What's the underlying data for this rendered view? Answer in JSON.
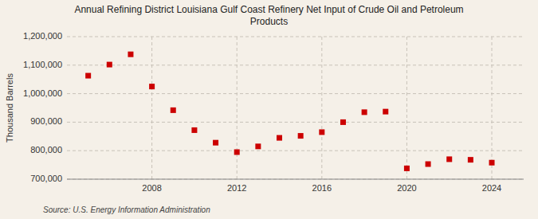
{
  "chart_data": {
    "type": "scatter",
    "title": "Annual Refining District Louisiana Gulf Coast Refinery Net Input of Crude Oil and Petroleum\nProducts",
    "y_label": "Thousand Barrels",
    "source": "Source: U.S. Energy Information Administration",
    "x": [
      2005,
      2006,
      2007,
      2008,
      2009,
      2010,
      2011,
      2012,
      2013,
      2014,
      2015,
      2016,
      2017,
      2018,
      2019,
      2020,
      2021,
      2022,
      2023,
      2024
    ],
    "values": [
      1063000,
      1102000,
      1138000,
      1025000,
      942000,
      872000,
      828000,
      795000,
      815000,
      845000,
      852000,
      865000,
      900000,
      935000,
      937000,
      738000,
      753000,
      770000,
      768000,
      758000
    ],
    "color": "#cc0000",
    "marker": "square",
    "xlim": [
      2004,
      2025.5
    ],
    "xticks": [
      2008,
      2012,
      2016,
      2020,
      2024
    ],
    "ylim": [
      700000,
      1200000
    ],
    "yticks": [
      {
        "value": 700000,
        "label": "700,000"
      },
      {
        "value": 800000,
        "label": "800,000"
      },
      {
        "value": 900000,
        "label": "900,000"
      },
      {
        "value": 1000000,
        "label": "1,000,000"
      },
      {
        "value": 1100000,
        "label": "1,100,000"
      },
      {
        "value": 1200000,
        "label": "1,200,000"
      }
    ],
    "grid": true
  }
}
